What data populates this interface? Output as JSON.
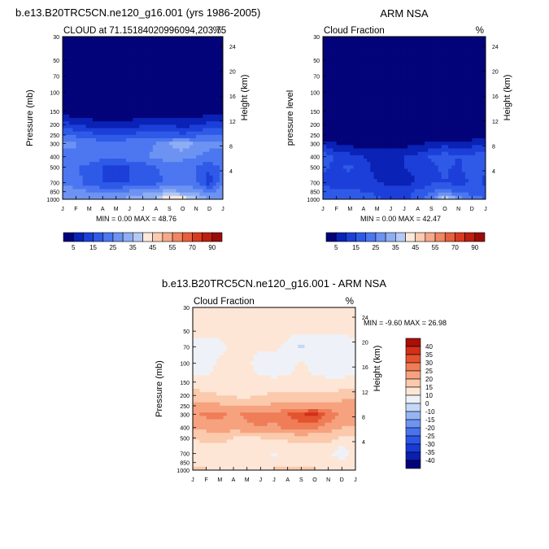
{
  "header": {
    "left_title": "b.e13.B20TRC5CN.ne120_g16.001 (yrs 1986-2005)",
    "right_title": "ARM NSA",
    "bottom_title": "b.e13.B20TRC5CN.ne120_g16.001 - ARM NSA"
  },
  "colors": {
    "abs_scale": [
      "#03037a",
      "#0a22b5",
      "#1c3fd9",
      "#2f5ae8",
      "#4c77f0",
      "#6d93f2",
      "#8eaef4",
      "#b4caf5",
      "#fde8dc",
      "#fbcab1",
      "#f6a98a",
      "#f08663",
      "#e75f3e",
      "#d93a1f",
      "#bd1f10",
      "#9a0d07"
    ],
    "diff_scale": [
      "#02027a",
      "#0a1fb0",
      "#1a3ad4",
      "#2c56e6",
      "#4a73ee",
      "#6e94f2",
      "#96b4f5",
      "#c4d8f8",
      "#eef2f8",
      "#fde6d6",
      "#fbc9ac",
      "#f6a27f",
      "#ef7d57",
      "#e4532f",
      "#d2301a",
      "#a80f08"
    ]
  },
  "chart_data": [
    {
      "id": "model",
      "type": "heatmap",
      "title": "CLOUD at 71.15184020996094,203.75",
      "units": "%",
      "ylabel": "Pressure (mb)",
      "y2label": "Height (km)",
      "months": [
        "J",
        "F",
        "M",
        "A",
        "M",
        "J",
        "J",
        "A",
        "S",
        "O",
        "N",
        "D",
        "J"
      ],
      "pressure_ticks": [
        "30",
        "50",
        "70",
        "100",
        "150",
        "200",
        "250",
        "300",
        "400",
        "500",
        "700",
        "850",
        "1000"
      ],
      "height_ticks": [
        "24",
        "20",
        "16",
        "12",
        "8",
        "4"
      ],
      "stats": "MIN =   0.00 MAX =  48.76",
      "levels": [
        5,
        10,
        15,
        20,
        25,
        30,
        35,
        40,
        45,
        50,
        55,
        60,
        70,
        80,
        90
      ],
      "colorbar_labels": [
        "5",
        "15",
        "25",
        "35",
        "45",
        "55",
        "70",
        "90"
      ],
      "pressure_levels": [
        30,
        50,
        70,
        100,
        150,
        200,
        250,
        300,
        400,
        500,
        700,
        850,
        1000
      ],
      "values": [
        [
          0,
          0,
          0,
          0,
          0,
          0,
          0,
          0,
          0,
          0,
          0,
          0,
          0
        ],
        [
          0,
          0,
          0,
          0,
          0,
          0,
          0,
          0,
          0,
          0,
          0,
          0,
          0
        ],
        [
          0,
          0,
          0,
          0,
          0,
          0,
          0,
          0,
          0,
          0,
          0,
          0,
          0
        ],
        [
          0,
          0,
          0,
          0,
          0,
          0,
          0,
          0,
          0,
          0,
          0,
          0,
          0
        ],
        [
          2,
          1,
          1,
          1,
          1,
          1,
          1,
          1,
          1,
          1,
          1,
          2,
          2
        ],
        [
          12,
          10,
          8,
          6,
          6,
          7,
          9,
          10,
          9,
          8,
          9,
          12,
          12
        ],
        [
          20,
          19,
          17,
          15,
          15,
          16,
          17,
          18,
          17,
          16,
          18,
          20,
          20
        ],
        [
          26,
          25,
          24,
          22,
          22,
          23,
          24,
          25,
          30,
          34,
          28,
          26,
          26
        ],
        [
          24,
          25,
          24,
          22,
          22,
          23,
          24,
          26,
          28,
          27,
          25,
          24,
          24
        ],
        [
          22,
          21,
          18,
          15,
          14,
          15,
          17,
          20,
          22,
          21,
          20,
          16,
          22
        ],
        [
          24,
          22,
          17,
          15,
          14,
          15,
          16,
          18,
          21,
          24,
          20,
          12,
          24
        ],
        [
          28,
          27,
          25,
          24,
          24,
          26,
          28,
          30,
          32,
          30,
          28,
          24,
          28
        ],
        [
          30,
          30,
          30,
          30,
          30,
          32,
          34,
          36,
          48,
          44,
          36,
          30,
          30
        ]
      ]
    },
    {
      "id": "obs",
      "type": "heatmap",
      "title": "Cloud Fraction",
      "units": "%",
      "ylabel": "pressure level",
      "y2label": "Height (km)",
      "months": [
        "J",
        "F",
        "M",
        "A",
        "M",
        "J",
        "J",
        "A",
        "S",
        "O",
        "N",
        "D",
        "J"
      ],
      "pressure_ticks": [
        "30",
        "50",
        "70",
        "100",
        "150",
        "200",
        "250",
        "300",
        "400",
        "500",
        "700",
        "850",
        "1000"
      ],
      "height_ticks": [
        "24",
        "20",
        "16",
        "12",
        "8",
        "4"
      ],
      "stats": "MIN =   0.00 MAX =  42.47",
      "levels": [
        5,
        10,
        15,
        20,
        25,
        30,
        35,
        40,
        45,
        50,
        55,
        60,
        70,
        80,
        90
      ],
      "colorbar_labels": [
        "5",
        "15",
        "25",
        "35",
        "45",
        "55",
        "70",
        "90"
      ],
      "pressure_levels": [
        30,
        50,
        70,
        100,
        150,
        200,
        250,
        300,
        400,
        500,
        700,
        850,
        1000
      ],
      "values": [
        [
          0,
          0,
          0,
          0,
          0,
          0,
          0,
          0,
          0,
          0,
          0,
          0,
          0
        ],
        [
          0,
          0,
          0,
          0,
          0,
          0,
          0,
          0,
          0,
          0,
          0,
          0,
          0
        ],
        [
          0,
          0,
          0,
          0,
          0,
          0,
          0,
          0,
          0,
          0,
          0,
          0,
          0
        ],
        [
          0,
          0,
          0,
          0,
          0,
          0,
          0,
          0,
          0,
          0,
          0,
          0,
          0
        ],
        [
          0,
          0,
          0,
          0,
          0,
          0,
          0,
          0,
          0,
          0,
          0,
          0,
          0
        ],
        [
          0,
          0,
          0,
          0,
          0,
          0,
          0,
          0,
          0,
          0,
          0,
          0,
          0
        ],
        [
          1,
          1,
          1,
          0,
          0,
          0,
          0,
          0,
          0,
          0,
          1,
          1,
          1
        ],
        [
          8,
          5,
          3,
          2,
          2,
          2,
          3,
          4,
          6,
          8,
          6,
          8,
          8
        ],
        [
          18,
          14,
          12,
          10,
          9,
          9,
          10,
          12,
          16,
          18,
          15,
          17,
          18
        ],
        [
          16,
          14,
          16,
          12,
          8,
          9,
          10,
          12,
          14,
          16,
          14,
          18,
          16
        ],
        [
          14,
          12,
          13,
          12,
          10,
          9,
          8,
          10,
          14,
          15,
          12,
          16,
          14
        ],
        [
          18,
          16,
          16,
          15,
          14,
          12,
          14,
          16,
          20,
          24,
          18,
          18,
          18
        ],
        [
          20,
          20,
          20,
          18,
          16,
          14,
          10,
          18,
          24,
          42,
          30,
          22,
          20
        ]
      ]
    },
    {
      "id": "diff",
      "type": "heatmap",
      "title": "Cloud Fraction",
      "units": "%",
      "ylabel": "Pressure (mb)",
      "y2label": "Height (km)",
      "months": [
        "J",
        "F",
        "M",
        "A",
        "M",
        "J",
        "J",
        "A",
        "S",
        "O",
        "N",
        "D",
        "J"
      ],
      "pressure_ticks": [
        "30",
        "50",
        "70",
        "100",
        "150",
        "200",
        "250",
        "300",
        "400",
        "500",
        "700",
        "850",
        "1000"
      ],
      "height_ticks": [
        "24",
        "20",
        "16",
        "12",
        "8",
        "4"
      ],
      "stats": "MIN =  -9.60 MAX =  26.98",
      "levels": [
        -40,
        -35,
        -30,
        -25,
        -20,
        -15,
        -10,
        -5,
        0,
        5,
        10,
        15,
        20,
        25,
        30,
        35,
        40
      ],
      "colorbar_labels": [
        "40",
        "35",
        "30",
        "25",
        "20",
        "15",
        "10",
        "0",
        "-10",
        "-15",
        "-20",
        "-25",
        "-30",
        "-35",
        "-40"
      ],
      "pressure_levels": [
        30,
        50,
        70,
        100,
        150,
        200,
        250,
        300,
        400,
        500,
        700,
        850,
        1000
      ],
      "values": [
        [
          1,
          1,
          1,
          1,
          1,
          1,
          1,
          1,
          1,
          1,
          1,
          1,
          1
        ],
        [
          2,
          1,
          1,
          1,
          1,
          1,
          1,
          1,
          1,
          1,
          1,
          1,
          2
        ],
        [
          -3,
          -2,
          -1,
          1,
          1,
          1,
          1,
          -1,
          -6,
          -3,
          -4,
          -3,
          -3
        ],
        [
          -2,
          -2,
          1,
          1,
          1,
          -2,
          -3,
          -2,
          1,
          -2,
          -3,
          -3,
          -2
        ],
        [
          1,
          1,
          1,
          1,
          1,
          1,
          1,
          1,
          1,
          1,
          1,
          1,
          1
        ],
        [
          8,
          7,
          5,
          4,
          4,
          5,
          6,
          6,
          6,
          6,
          6,
          8,
          8
        ],
        [
          12,
          12,
          11,
          10,
          9,
          10,
          11,
          12,
          12,
          12,
          12,
          12,
          12
        ],
        [
          14,
          16,
          16,
          14,
          16,
          18,
          16,
          20,
          24,
          27,
          18,
          14,
          14
        ],
        [
          10,
          12,
          13,
          12,
          14,
          15,
          14,
          16,
          18,
          16,
          13,
          10,
          10
        ],
        [
          5,
          6,
          7,
          5,
          4,
          5,
          6,
          6,
          7,
          6,
          7,
          4,
          5
        ],
        [
          3,
          3,
          2,
          1,
          1,
          1,
          -1,
          1,
          1,
          1,
          1,
          -3,
          3
        ],
        [
          2,
          2,
          1,
          1,
          1,
          1,
          2,
          1,
          1,
          1,
          1,
          2,
          2
        ],
        [
          6,
          6,
          3,
          2,
          3,
          4,
          6,
          8,
          8,
          6,
          4,
          4,
          6
        ]
      ]
    }
  ]
}
